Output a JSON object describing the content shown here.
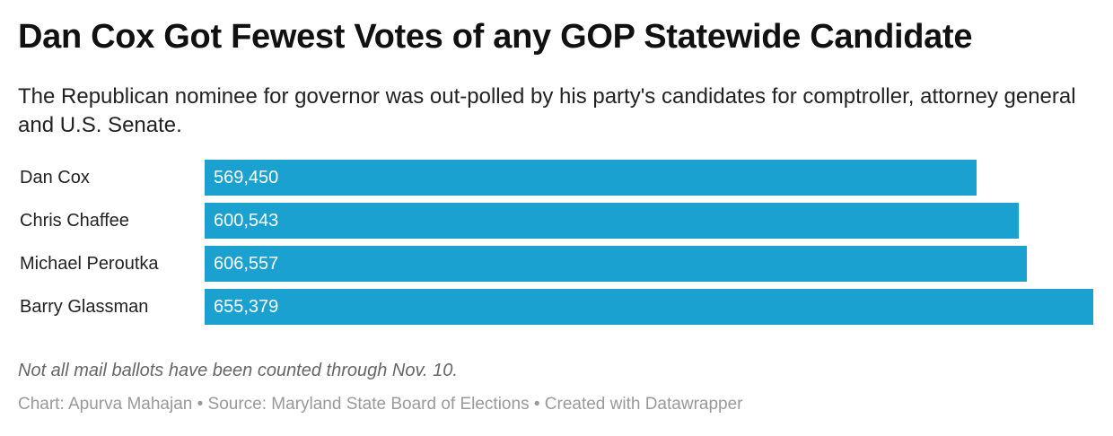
{
  "header": {
    "title": "Dan Cox Got Fewest Votes of any GOP Statewide Candidate",
    "subtitle": "The Republican nominee for governor was out-polled by his party's candidates for comptroller, attorney general and U.S. Senate."
  },
  "chart_data": {
    "type": "bar",
    "orientation": "horizontal",
    "title": "Dan Cox Got Fewest Votes of any GOP Statewide Candidate",
    "subtitle": "The Republican nominee for governor was out-polled by his party's candidates for comptroller, attorney general and U.S. Senate.",
    "categories": [
      "Dan Cox",
      "Chris Chaffee",
      "Michael Peroutka",
      "Barry Glassman"
    ],
    "values": [
      569450,
      600543,
      606557,
      655379
    ],
    "value_labels": [
      "569,450",
      "600,543",
      "606,557",
      "655,379"
    ],
    "xlim": [
      0,
      655379
    ],
    "bar_color": "#1ba1d0",
    "grid": false,
    "legend": "none"
  },
  "footer": {
    "note": "Not all mail ballots have been counted through Nov. 10.",
    "credits": "Chart: Apurva Mahajan • Source: Maryland State Board of Elections • Created with Datawrapper"
  }
}
